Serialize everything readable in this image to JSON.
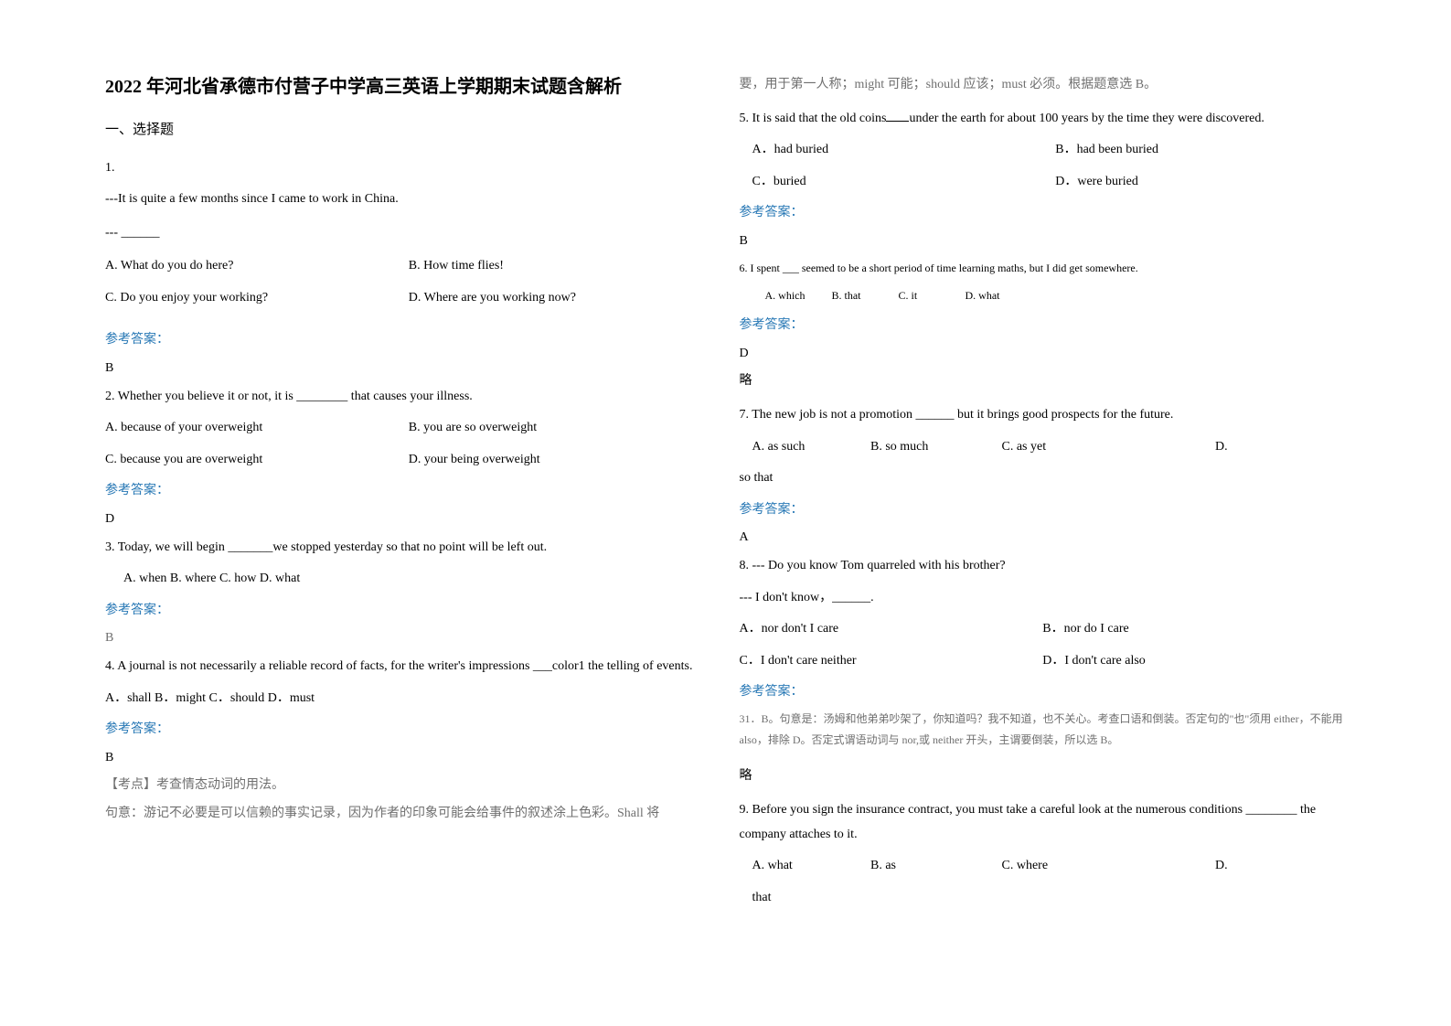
{
  "title": "2022 年河北省承德市付营子中学高三英语上学期期末试题含解析",
  "section1": "一、选择题",
  "answer_label": "参考答案：",
  "omit": "略",
  "q1": {
    "num": "1.",
    "line1": "---It is quite a few months since I came to work in China.",
    "line2": "--- ______",
    "optA": "A. What do you do here?",
    "optB": "B. How time flies!",
    "optC": "C. Do you enjoy your working?",
    "optD": "D. Where are you working now?",
    "ans": "B"
  },
  "q2": {
    "stem": "2. Whether you believe it or not, it is ________ that causes your illness.",
    "optA": "A. because of your overweight",
    "optB": "B. you are so overweight",
    "optC": "C. because you are overweight",
    "optD": "D. your being overweight",
    "ans": "D"
  },
  "q3": {
    "stem": "3. Today, we will begin _______we stopped yesterday so that no point will be left out.",
    "opts": "A. when    B. where        C. how  D. what",
    "ans": "B"
  },
  "q4": {
    "stem": "4. A journal is not necessarily a reliable record of facts, for the writer's impressions ___color1 the telling of events.",
    "opts": "A．shall      B．might        C．should       D．must",
    "ans": "B",
    "note1": "【考点】考查情态动词的用法。",
    "note2": "句意：游记不必要是可以信赖的事实记录，因为作者的印象可能会给事件的叙述涂上色彩。Shall 将"
  },
  "q4_cont": "要，用于第一人称；might 可能；should 应该；must 必须。根据题意选 B。",
  "q5": {
    "stem": "5. It is said that the old coins_____under the earth for about 100 years by the time they were discovered.",
    "optA": "A．had buried",
    "optB": "B．had been buried",
    "optC": "C．buried",
    "optD": "D．were buried",
    "ans": "B"
  },
  "q6": {
    "stem": "6. I spent ___ seemed to be a short period of time learning maths, but I did get somewhere.",
    "optA": "A. which",
    "optB": "B. that",
    "optC": "C. it",
    "optD": "D. what",
    "ans": "D"
  },
  "q7": {
    "stem": "7. The new job is not a promotion ______ but it brings good prospects for the future.",
    "optA": "A. as such",
    "optB": "B. so much",
    "optC": "C. as yet",
    "optD": "D.",
    "optD2": "so that",
    "ans": "A"
  },
  "q8": {
    "line1": "8. --- Do you know Tom quarreled with his brother?",
    "line2": "--- I don't know，______.",
    "optA": "A．nor don't I care",
    "optB": "B．nor do I care",
    "optC": "C．I don't care neither",
    "optD": "D．I don't care also",
    "note": "31．B。句意是：汤姆和他弟弟吵架了，你知道吗？我不知道，也不关心。考查口语和倒装。否定句的\"也\"须用 either，不能用 also，排除 D。否定式谓语动词与 nor,或 neither 开头，主谓要倒装，所以选 B。"
  },
  "q9": {
    "stem": "9. Before you sign the insurance contract, you must take a careful look at the numerous conditions ________ the company attaches to it.",
    "optA": "A. what",
    "optB": "B. as",
    "optC": "C. where",
    "optD": "D.",
    "optD2": "that"
  }
}
